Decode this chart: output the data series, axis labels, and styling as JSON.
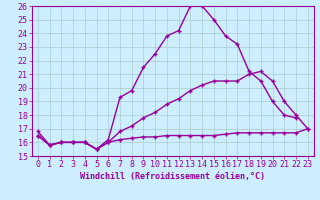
{
  "xlabel": "Windchill (Refroidissement éolien,°C)",
  "bg_color": "#cceeff",
  "line_color": "#990099",
  "grid_color": "#aacccc",
  "xlim": [
    -0.5,
    23.5
  ],
  "ylim": [
    15,
    26
  ],
  "xticks": [
    0,
    1,
    2,
    3,
    4,
    5,
    6,
    7,
    8,
    9,
    10,
    11,
    12,
    13,
    14,
    15,
    16,
    17,
    18,
    19,
    20,
    21,
    22,
    23
  ],
  "yticks": [
    15,
    16,
    17,
    18,
    19,
    20,
    21,
    22,
    23,
    24,
    25,
    26
  ],
  "line1_x": [
    0,
    1,
    2,
    3,
    4,
    5,
    6,
    7,
    8,
    9,
    10,
    11,
    12,
    13,
    14,
    15,
    16,
    17,
    18,
    19,
    20,
    21,
    22
  ],
  "line1_y": [
    16.8,
    15.8,
    16.0,
    16.0,
    16.0,
    15.5,
    16.2,
    19.3,
    19.8,
    21.5,
    22.5,
    23.8,
    24.2,
    26.0,
    26.0,
    25.0,
    23.8,
    23.2,
    21.2,
    20.5,
    19.0,
    18.0,
    17.8
  ],
  "line2_x": [
    0,
    1,
    2,
    3,
    4,
    5,
    6,
    7,
    8,
    9,
    10,
    11,
    12,
    13,
    14,
    15,
    16,
    17,
    18,
    19,
    20,
    21,
    22,
    23
  ],
  "line2_y": [
    16.5,
    15.8,
    16.0,
    16.0,
    16.0,
    15.5,
    16.0,
    16.8,
    17.2,
    17.8,
    18.2,
    18.8,
    19.2,
    19.8,
    20.2,
    20.5,
    20.5,
    20.5,
    21.0,
    21.2,
    20.5,
    19.0,
    18.0,
    17.0
  ],
  "line3_x": [
    0,
    1,
    2,
    3,
    4,
    5,
    6,
    7,
    8,
    9,
    10,
    11,
    12,
    13,
    14,
    15,
    16,
    17,
    18,
    19,
    20,
    21,
    22,
    23
  ],
  "line3_y": [
    16.5,
    15.8,
    16.0,
    16.0,
    16.0,
    15.5,
    16.0,
    16.2,
    16.3,
    16.4,
    16.4,
    16.5,
    16.5,
    16.5,
    16.5,
    16.5,
    16.6,
    16.7,
    16.7,
    16.7,
    16.7,
    16.7,
    16.7,
    17.0
  ],
  "font_size": 6,
  "marker": "+",
  "linewidth": 1.0,
  "markersize": 3
}
